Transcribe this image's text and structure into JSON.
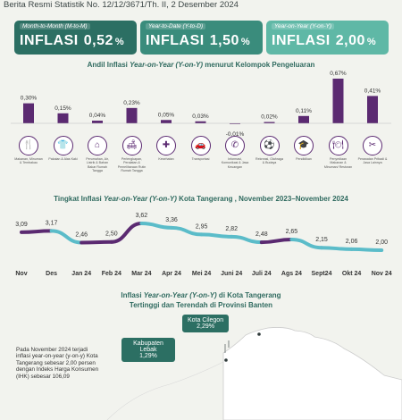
{
  "header": {
    "text": "Berita Resmi Statistik No. 12/12/3671/Th. II, 2 Desember 2024"
  },
  "cards": [
    {
      "label": "Month-to-Month (M-to-M)",
      "title": "INFLASI",
      "value": "0,52",
      "unit": "%"
    },
    {
      "label": "Year-to-Date (Y-to-D)",
      "title": "INFLASI",
      "value": "1,50",
      "unit": "%"
    },
    {
      "label": "Year-on-Year (Y-on-Y)",
      "title": "INFLASI",
      "value": "2,00",
      "unit": "%"
    }
  ],
  "bar_section": {
    "title_pre": "Andil Inflasi ",
    "title_em": "Year-on-Year (Y-on-Y)",
    "title_post": " menurut Kelompok Pengeluaran"
  },
  "line_section": {
    "title_pre": "Tingkat Inflasi ",
    "title_em": "Year-on-Year (Y-on-Y)",
    "title_post": " Kota Tangerang , November 2023–November 2024"
  },
  "map_section": {
    "title_line1_pre": "Inflasi ",
    "title_line1_em": "Year-on-Year (Y-on-Y)",
    "title_line1_post": " di Kota Tangerang",
    "title_line2": "Tertinggi dan Terendah di Provinsi Banten",
    "note": "Pada November 2024 terjadi inflasi year-on-year (y-on-y) Kota Tangerang sebesar 2,00 persen dengan Indeks Harga Konsumen (IHK) sebesar 106,09",
    "callout_high": {
      "name": "Kota Cilegon",
      "value": "2,29%"
    },
    "callout_low": {
      "name": "Kabupaten Lebak",
      "value": "1,29%"
    }
  },
  "icons": [
    "food-icon",
    "clothing-icon",
    "house-icon",
    "sofa-icon",
    "health-icon",
    "transport-icon",
    "phone-icon",
    "sport-icon",
    "education-icon",
    "restaurant-icon",
    "tools-icon"
  ],
  "chart_data": [
    {
      "type": "bar",
      "categories": [
        "Makanan, Minuman & Tembakau",
        "Pakaian & Alas Kaki",
        "Perumahan, Air, Listrik & Bahan Bakar Rumah Tangga",
        "Perlengkapan, Peralatan & Pemeliharaan Rutin Rumah Tangga",
        "Kesehatan",
        "Transportasi",
        "Informasi, Komunikasi & Jasa Keuangan",
        "Rekreasi, Olahraga & Budaya",
        "Pendidikan",
        "Penyediaan Makanan & Minuman/ Restoran",
        "Perawatan Pribadi & Jasa Lainnya"
      ],
      "values": [
        0.3,
        0.15,
        0.04,
        0.23,
        0.05,
        0.03,
        -0.01,
        0.02,
        0.11,
        0.67,
        0.41
      ],
      "labels": [
        "0,30%",
        "0,15%",
        "0,04%",
        "0,23%",
        "0,05%",
        "0,03%",
        "-0,01%",
        "0,02%",
        "0,11%",
        "0,67%",
        "0,41%"
      ]
    },
    {
      "type": "line",
      "categories": [
        "Nov",
        "Des",
        "Jan 24",
        "Feb 24",
        "Mar 24",
        "Apr 24",
        "Mei 24",
        "Juni 24",
        "Juli 24",
        "Ags 24",
        "Sept24",
        "Okt 24",
        "Nov 24"
      ],
      "values": [
        3.09,
        3.17,
        2.46,
        2.5,
        3.62,
        3.36,
        2.95,
        2.82,
        2.48,
        2.65,
        2.15,
        2.06,
        2.0
      ],
      "labels": [
        "3,09",
        "3,17",
        "2,46",
        "2,50",
        "3,62",
        "3,36",
        "2,95",
        "2,82",
        "2,48",
        "2,65",
        "2,15",
        "2,06",
        "2,00"
      ],
      "colors": {
        "rising": "#5b2a71",
        "falling": "#5bbcc9"
      }
    }
  ]
}
